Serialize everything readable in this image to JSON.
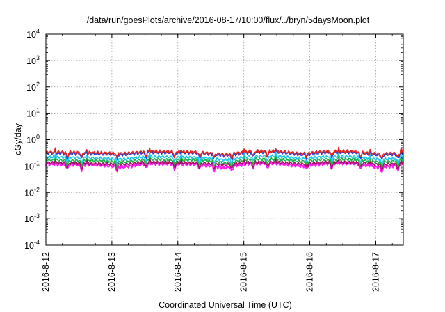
{
  "chart_data": {
    "type": "line",
    "title": "/data/run/goesPlots/archive/2016-08-17/10:00/flux/../bryn/5daysMoon.plot",
    "xlabel": "Coordinated Universal Time (UTC)",
    "ylabel": "cGy/day",
    "yscale": "log",
    "ylim": [
      0.0001,
      10000
    ],
    "xlim": [
      "2016-08-12 00:00",
      "2016-08-17 10:00"
    ],
    "grid": true,
    "x_ticks": [
      "2016-8-12",
      "2016-8-13",
      "2016-8-14",
      "2016-8-15",
      "2016-8-16",
      "2016-8-17"
    ],
    "y_ticks": [
      {
        "base": "10",
        "exp": "-4"
      },
      {
        "base": "10",
        "exp": "-3"
      },
      {
        "base": "10",
        "exp": "-2"
      },
      {
        "base": "10",
        "exp": "-1"
      },
      {
        "base": "10",
        "exp": "0"
      },
      {
        "base": "10",
        "exp": "1"
      },
      {
        "base": "10",
        "exp": "2"
      },
      {
        "base": "10",
        "exp": "3"
      },
      {
        "base": "10",
        "exp": "4"
      }
    ],
    "series": [
      {
        "color": "#e8241d",
        "values": [
          0.34,
          0.33,
          0.32,
          0.3,
          0.36,
          0.35,
          0.34,
          0.27,
          0.36,
          0.37,
          0.3,
          0.36,
          0.36,
          0.29,
          0.32
        ]
      },
      {
        "color": "#1f3fe0",
        "values": [
          0.31,
          0.3,
          0.29,
          0.27,
          0.33,
          0.32,
          0.31,
          0.25,
          0.33,
          0.34,
          0.27,
          0.33,
          0.33,
          0.26,
          0.29
        ]
      },
      {
        "color": "#1ec8e8",
        "values": [
          0.22,
          0.21,
          0.2,
          0.18,
          0.23,
          0.22,
          0.21,
          0.17,
          0.23,
          0.24,
          0.19,
          0.23,
          0.23,
          0.18,
          0.2
        ]
      },
      {
        "color": "#1fae4a",
        "values": [
          0.17,
          0.16,
          0.16,
          0.14,
          0.18,
          0.17,
          0.17,
          0.13,
          0.18,
          0.18,
          0.15,
          0.18,
          0.18,
          0.14,
          0.16
        ]
      },
      {
        "color": "#a0125e",
        "values": [
          0.135,
          0.13,
          0.125,
          0.115,
          0.14,
          0.135,
          0.13,
          0.11,
          0.14,
          0.14,
          0.12,
          0.14,
          0.14,
          0.115,
          0.125
        ]
      },
      {
        "color": "#ff1ef0",
        "values": [
          0.12,
          0.115,
          0.11,
          0.09,
          0.125,
          0.12,
          0.115,
          0.085,
          0.125,
          0.125,
          0.1,
          0.125,
          0.125,
          0.09,
          0.11
        ]
      }
    ]
  }
}
